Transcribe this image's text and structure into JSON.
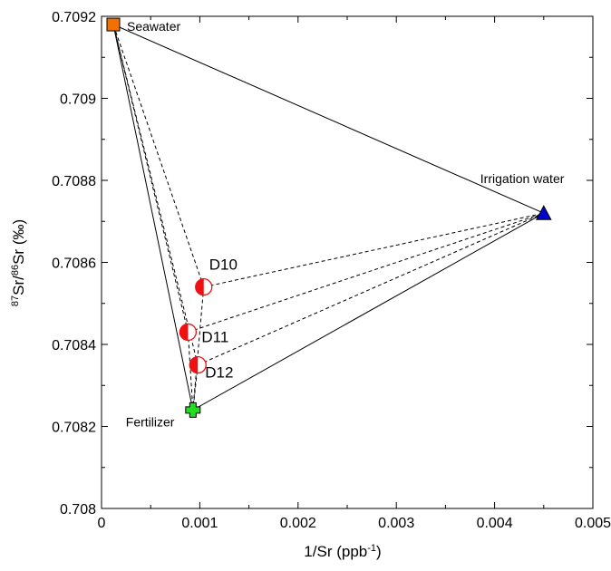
{
  "chart_data": {
    "type": "scatter",
    "title": "",
    "xlabel": "1/Sr (ppb",
    "xlabel_sup": "-1",
    "xlabel_close": ")",
    "ylabel_sup1": "87",
    "ylabel_mid": "Sr/",
    "ylabel_sup2": "86",
    "ylabel_end": "Sr (‰)",
    "xlim": [
      0,
      0.005
    ],
    "ylim": [
      0.708,
      0.7092
    ],
    "xticks": [
      0,
      0.001,
      0.002,
      0.003,
      0.004,
      0.005
    ],
    "xtick_labels": [
      "0",
      "0.001",
      "0.002",
      "0.003",
      "0.004",
      "0.005"
    ],
    "yticks": [
      0.708,
      0.7082,
      0.7084,
      0.7086,
      0.7088,
      0.709,
      0.7092
    ],
    "ytick_labels": [
      "0.708",
      "0.7082",
      "0.7084",
      "0.7086",
      "0.7088",
      "0.709",
      "0.7092"
    ],
    "grid": false,
    "endmembers": [
      {
        "name": "Seawater",
        "x": 0.00012,
        "y": 0.70918,
        "marker": "square",
        "color": "#f07000"
      },
      {
        "name": "Irrigation water",
        "x": 0.0045,
        "y": 0.70872,
        "marker": "triangle",
        "color": "#0000cc"
      },
      {
        "name": "Fertilizer",
        "x": 0.00093,
        "y": 0.70824,
        "marker": "plus",
        "color": "#22dd22"
      }
    ],
    "samples": [
      {
        "name": "D10",
        "x": 0.00104,
        "y": 0.70854
      },
      {
        "name": "D11",
        "x": 0.00088,
        "y": 0.70843
      },
      {
        "name": "D12",
        "x": 0.00098,
        "y": 0.70835
      }
    ],
    "sample_marker_color": "#ee1111",
    "mixing_lines": "solid triangle between end-members; dashed lines from each sample to each end-member"
  }
}
